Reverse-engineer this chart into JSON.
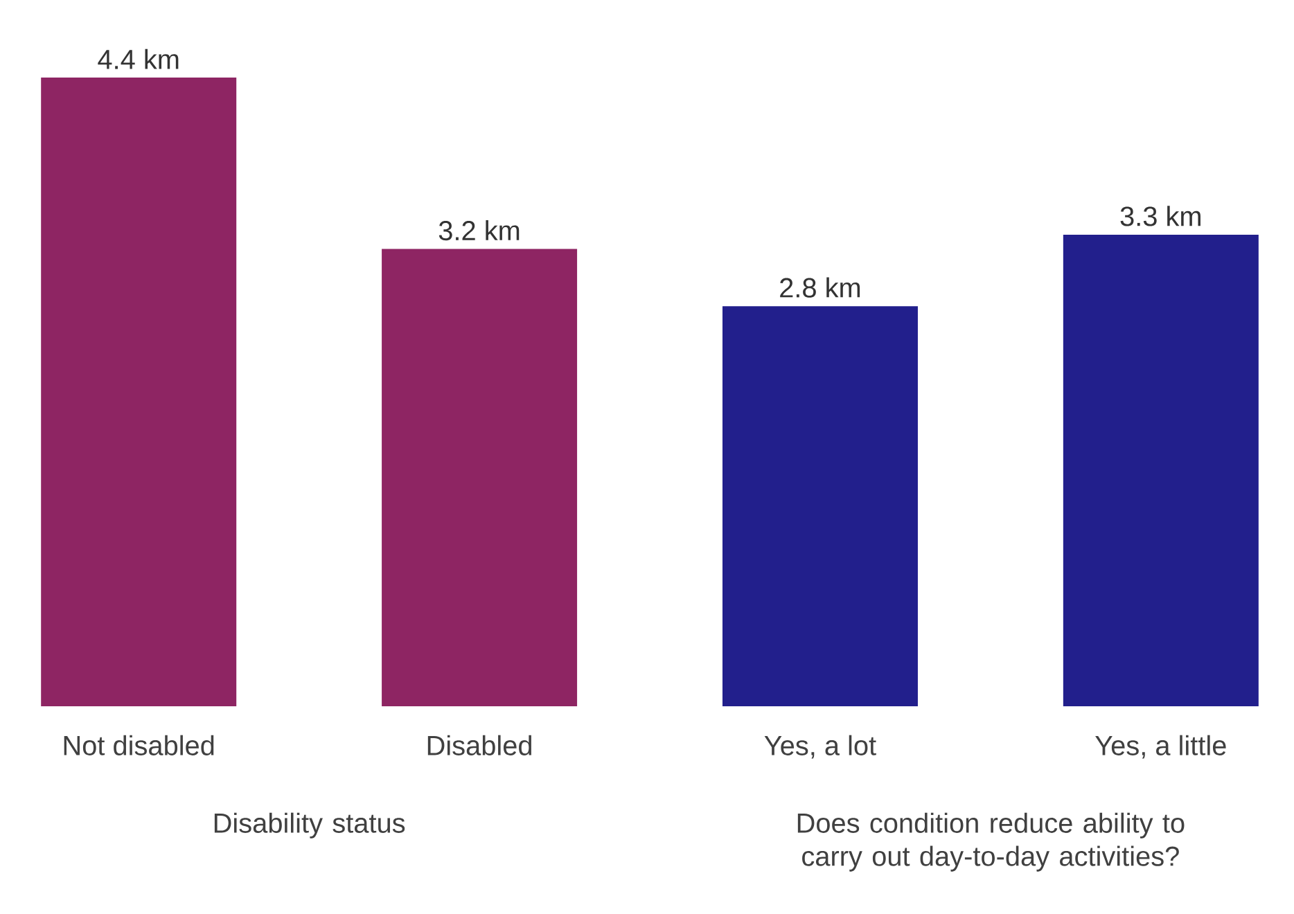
{
  "chart_data": {
    "type": "bar",
    "categories": [
      "Not disabled",
      "Disabled",
      "Yes, a lot",
      "Yes, a little"
    ],
    "values": [
      4.4,
      3.2,
      2.8,
      3.3
    ],
    "value_labels": [
      "4.4 km",
      "3.2 km",
      "2.8 km",
      "3.3 km"
    ],
    "colors": [
      "#8e2563",
      "#8e2563",
      "#221f8c",
      "#221f8c"
    ],
    "annotations": [
      "Disability status",
      "Does condition reduce ability to carry out day-to-day activities?"
    ],
    "tick_labels": "x"
  }
}
